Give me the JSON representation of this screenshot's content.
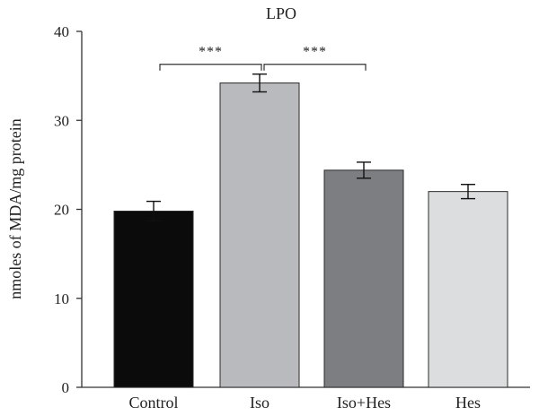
{
  "chart_data": {
    "type": "bar",
    "title": "LPO",
    "xlabel": "",
    "ylabel": "nmoles of MDA/mg protein",
    "ylim": [
      0,
      40
    ],
    "yticks": [
      0,
      10,
      20,
      30,
      40
    ],
    "categories": [
      "Control",
      "Iso",
      "Iso+Hes",
      "Hes"
    ],
    "values": [
      19.8,
      34.2,
      24.4,
      22.0
    ],
    "errors": [
      1.1,
      1.0,
      0.9,
      0.8
    ],
    "colors": [
      "#0b0b0b",
      "#b9babd",
      "#7d7e81",
      "#dcdddf"
    ],
    "significance": [
      {
        "from": 0,
        "to": 1,
        "label": "***",
        "y": 36.5
      },
      {
        "from": 1,
        "to": 2,
        "label": "***",
        "y": 36.5
      }
    ],
    "grid": false,
    "legend": "none"
  }
}
